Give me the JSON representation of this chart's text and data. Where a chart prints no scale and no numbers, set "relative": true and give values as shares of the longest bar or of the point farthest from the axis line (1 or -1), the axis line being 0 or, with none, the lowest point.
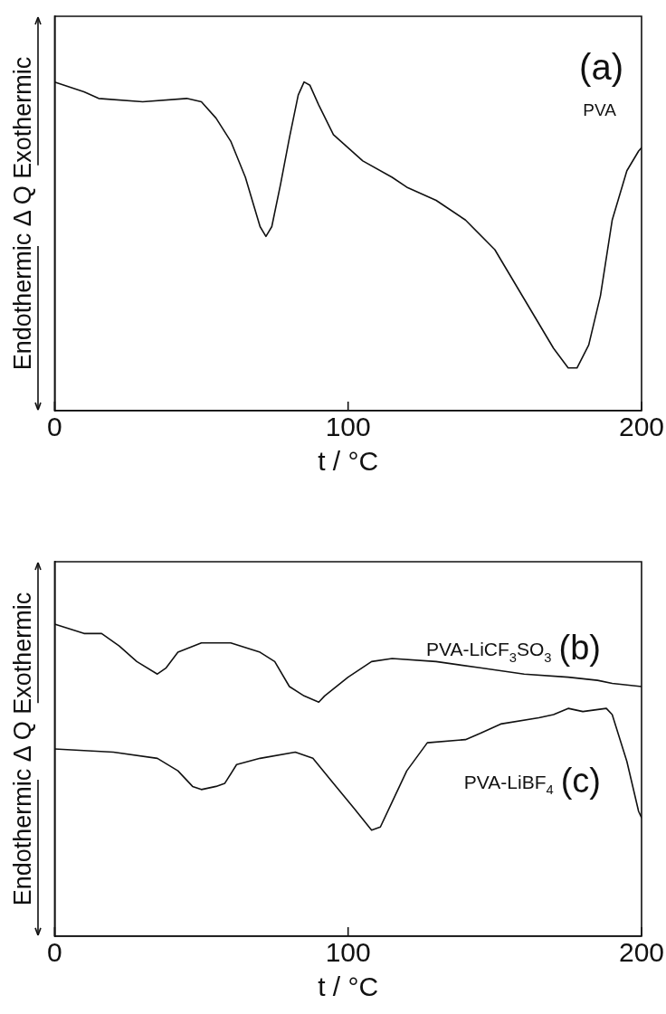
{
  "chart_data": [
    {
      "type": "line",
      "xlabel": "t / °C",
      "ylabel": "Endothermic Δ Q Exothermic",
      "relative": true,
      "xlim": [
        0,
        200
      ],
      "xticks": [
        0,
        100,
        200
      ],
      "tick_labels": "x",
      "grid": false,
      "legend": false,
      "marker": "none",
      "line_style": "solid",
      "annotations": [
        "(a)"
      ],
      "series": [
        {
          "name": "PVA",
          "color": "#111111",
          "x": [
            0,
            10,
            15,
            30,
            45,
            50,
            55,
            60,
            65,
            68,
            70,
            72,
            74,
            77,
            80,
            83,
            85,
            87,
            90,
            95,
            100,
            105,
            115,
            120,
            130,
            140,
            150,
            160,
            170,
            175,
            178,
            182,
            186,
            190,
            195,
            199,
            200
          ],
          "values": [
            1.0,
            0.97,
            0.95,
            0.94,
            0.95,
            0.94,
            0.89,
            0.82,
            0.71,
            0.62,
            0.56,
            0.53,
            0.56,
            0.69,
            0.83,
            0.96,
            1.0,
            0.99,
            0.93,
            0.84,
            0.8,
            0.76,
            0.71,
            0.68,
            0.64,
            0.58,
            0.49,
            0.34,
            0.19,
            0.13,
            0.13,
            0.2,
            0.35,
            0.58,
            0.73,
            0.79,
            0.8
          ]
        }
      ]
    },
    {
      "type": "line",
      "xlabel": "t / °C",
      "ylabel": "Endothermic Δ Q Exothermic",
      "relative": true,
      "xlim": [
        0,
        200
      ],
      "xticks": [
        0,
        100,
        200
      ],
      "tick_labels": "x",
      "grid": false,
      "legend": false,
      "marker": "none",
      "line_style": "solid",
      "annotations": [
        "(b)",
        "(c)"
      ],
      "series": [
        {
          "name": "PVA-LiCF$_{3}$SO$_{3}$",
          "color": "#111111",
          "x": [
            0,
            10,
            16,
            22,
            28,
            35,
            38,
            42,
            50,
            60,
            70,
            75,
            80,
            85,
            90,
            92,
            100,
            108,
            115,
            130,
            145,
            160,
            175,
            185,
            190,
            200
          ],
          "values": [
            1.0,
            0.97,
            0.97,
            0.93,
            0.88,
            0.84,
            0.86,
            0.91,
            0.94,
            0.94,
            0.91,
            0.88,
            0.8,
            0.77,
            0.75,
            0.77,
            0.83,
            0.88,
            0.89,
            0.88,
            0.86,
            0.84,
            0.83,
            0.82,
            0.81,
            0.8
          ]
        },
        {
          "name": "PVA-LiBF$_{4}$",
          "color": "#111111",
          "x": [
            0,
            20,
            35,
            42,
            47,
            50,
            55,
            58,
            62,
            70,
            82,
            88,
            95,
            102,
            108,
            111,
            115,
            120,
            127,
            140,
            145,
            152,
            165,
            170,
            175,
            180,
            188,
            190,
            195,
            199,
            200
          ],
          "values": [
            0.6,
            0.59,
            0.57,
            0.53,
            0.48,
            0.47,
            0.48,
            0.49,
            0.55,
            0.57,
            0.59,
            0.57,
            0.49,
            0.41,
            0.34,
            0.35,
            0.43,
            0.53,
            0.62,
            0.63,
            0.65,
            0.68,
            0.7,
            0.71,
            0.73,
            0.72,
            0.73,
            0.71,
            0.56,
            0.4,
            0.38
          ]
        }
      ]
    }
  ]
}
